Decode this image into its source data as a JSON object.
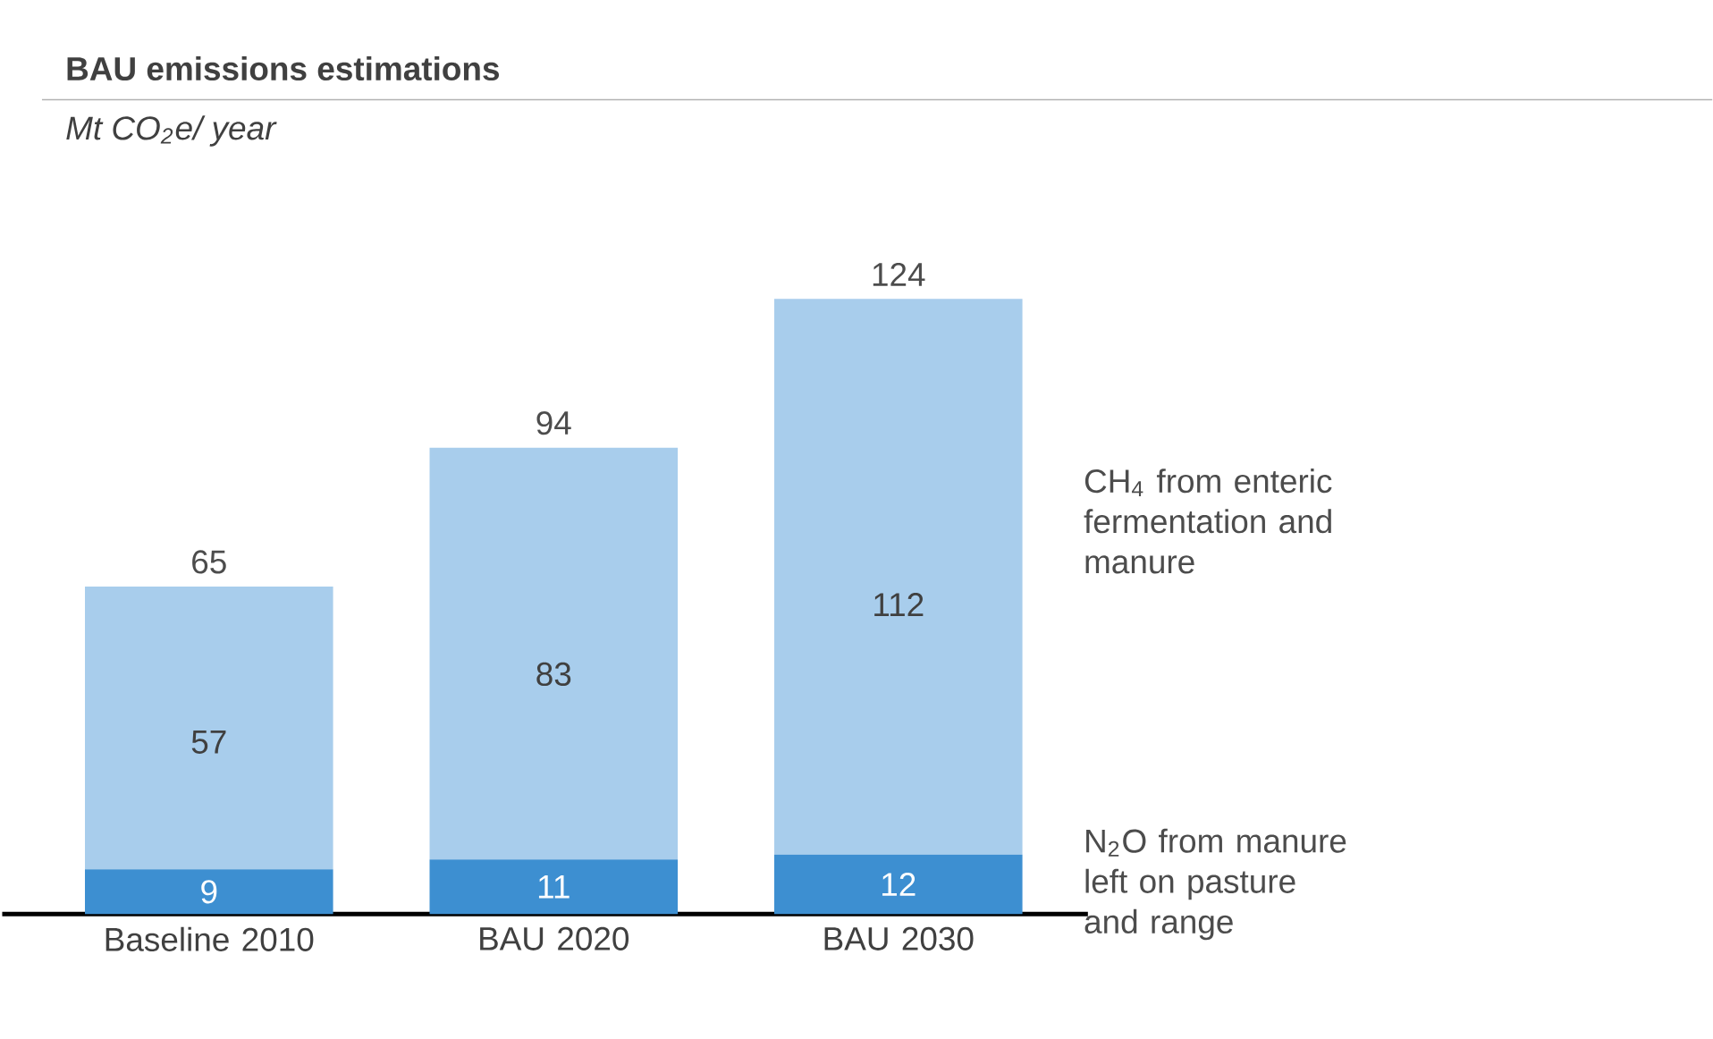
{
  "chart_data": {
    "type": "bar",
    "title": "BAU emissions estimations",
    "subtitle": "Mt CO$_{2}$e/ year",
    "categories": [
      "Baseline 2010",
      "BAU 2020",
      "BAU 2030"
    ],
    "stacked": true,
    "data_labels": true,
    "series": [
      {
        "name": "N$_{2}$O from manure left on pasture and range",
        "color": "#3d8fd1",
        "values": [
          9,
          11,
          12
        ]
      },
      {
        "name": "CH$_{4}$ from enteric fermentation and manure",
        "color": "#a8cdec",
        "values": [
          57,
          83,
          112
        ]
      }
    ],
    "totals": [
      "65",
      "94",
      "124"
    ]
  }
}
